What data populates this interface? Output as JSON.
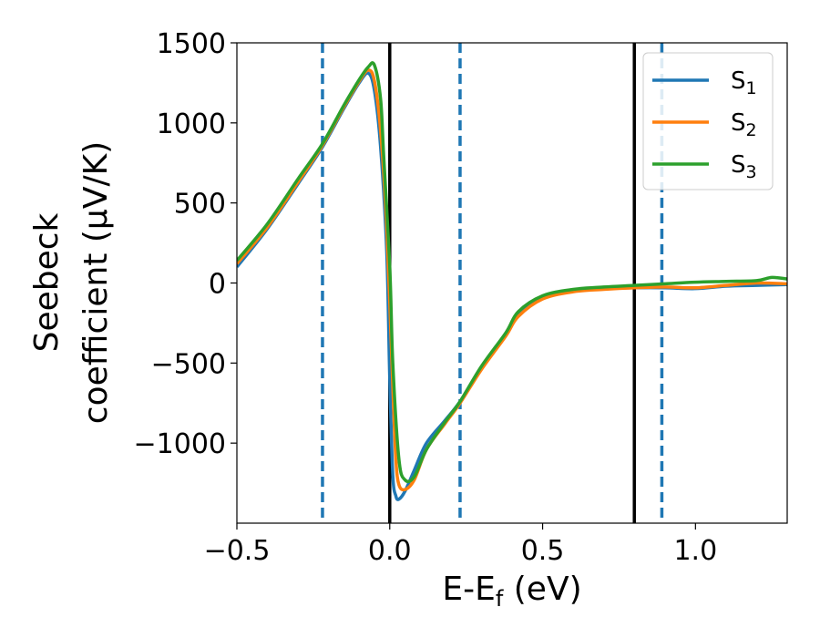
{
  "chart_data": {
    "type": "line",
    "title": "",
    "xlabel": "E-E",
    "xlabel_sub": "f",
    "xlabel_unit": " (eV)",
    "ylabel_line1": "Seebeck",
    "ylabel_line2": "coefficient  (μV/K)",
    "xlim": [
      -0.5,
      1.3
    ],
    "ylim": [
      -1500,
      1500
    ],
    "xticks": [
      -0.5,
      0.0,
      0.5,
      1.0
    ],
    "xtick_labels": [
      "−0.5",
      "0.0",
      "0.5",
      "1.0"
    ],
    "yticks": [
      -1000,
      -500,
      0,
      500,
      1000,
      1500
    ],
    "ytick_labels": [
      "−1000",
      "−500",
      "0",
      "500",
      "1000",
      "1500"
    ],
    "grid": false,
    "legend_position": "top-right",
    "vlines_solid": [
      0.0,
      0.8
    ],
    "vlines_dashed": [
      -0.22,
      0.23,
      0.89
    ],
    "vline_solid_color": "#000000",
    "vline_dashed_color": "#1f77b4",
    "series": [
      {
        "name": "S",
        "sub": "1",
        "color": "#1f77b4",
        "x": [
          -0.5,
          -0.4,
          -0.3,
          -0.22,
          -0.15,
          -0.1,
          -0.07,
          -0.05,
          -0.03,
          -0.01,
          0.0,
          0.01,
          0.02,
          0.03,
          0.05,
          0.08,
          0.12,
          0.18,
          0.23,
          0.3,
          0.38,
          0.42,
          0.5,
          0.6,
          0.7,
          0.8,
          0.9,
          1.0,
          1.1,
          1.2,
          1.3
        ],
        "y": [
          100,
          340,
          620,
          850,
          1090,
          1250,
          1310,
          1200,
          850,
          200,
          -600,
          -1200,
          -1330,
          -1350,
          -1300,
          -1170,
          -1000,
          -860,
          -740,
          -530,
          -320,
          -200,
          -90,
          -50,
          -35,
          -30,
          -30,
          -35,
          -20,
          -15,
          -10
        ]
      },
      {
        "name": "S",
        "sub": "2",
        "color": "#ff7f0e",
        "x": [
          -0.5,
          -0.4,
          -0.3,
          -0.22,
          -0.15,
          -0.1,
          -0.07,
          -0.05,
          -0.03,
          -0.01,
          0.01,
          0.02,
          0.03,
          0.05,
          0.08,
          0.12,
          0.18,
          0.23,
          0.3,
          0.38,
          0.42,
          0.5,
          0.6,
          0.7,
          0.8,
          0.9,
          1.0,
          1.1,
          1.2,
          1.3
        ],
        "y": [
          120,
          350,
          630,
          860,
          1100,
          1260,
          1330,
          1260,
          950,
          350,
          -650,
          -1100,
          -1260,
          -1290,
          -1230,
          -1040,
          -880,
          -750,
          -540,
          -330,
          -210,
          -100,
          -55,
          -40,
          -30,
          -25,
          -30,
          -15,
          0,
          -5
        ]
      },
      {
        "name": "S",
        "sub": "3",
        "color": "#2ca02c",
        "x": [
          -0.5,
          -0.4,
          -0.3,
          -0.22,
          -0.15,
          -0.1,
          -0.07,
          -0.05,
          -0.03,
          -0.02,
          0.0,
          0.01,
          0.03,
          0.05,
          0.08,
          0.12,
          0.18,
          0.23,
          0.3,
          0.38,
          0.42,
          0.5,
          0.6,
          0.7,
          0.8,
          0.9,
          1.0,
          1.1,
          1.2,
          1.25,
          1.3
        ],
        "y": [
          140,
          370,
          650,
          870,
          1110,
          1270,
          1350,
          1360,
          1150,
          800,
          100,
          -500,
          -1100,
          -1230,
          -1210,
          -1040,
          -870,
          -740,
          -520,
          -310,
          -180,
          -80,
          -40,
          -25,
          -15,
          -5,
          5,
          10,
          15,
          35,
          25
        ]
      }
    ]
  }
}
